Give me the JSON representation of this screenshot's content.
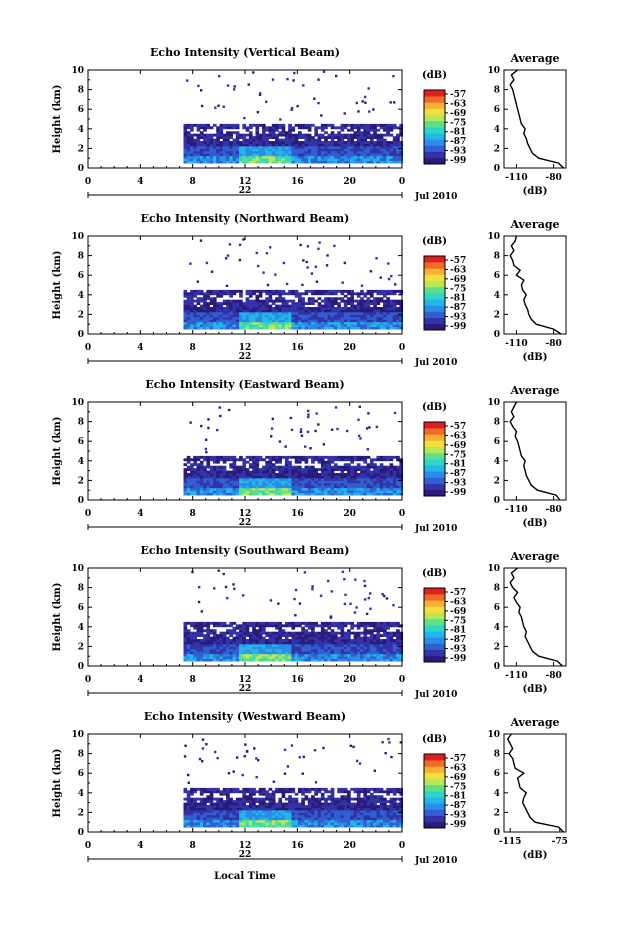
{
  "x_axis_label": "Local Time",
  "date_label": "Jul 2010",
  "day_label": "22",
  "height_label": "Height (km)",
  "cbar_unit": "(dB)",
  "profile_title": "Average",
  "profile_xlabel": "(dB)",
  "colorscale": [
    "#2a1b7a",
    "#3333a8",
    "#2f5fd0",
    "#2a8be8",
    "#24b6e8",
    "#2fd6c8",
    "#5ee08a",
    "#b8e85a",
    "#f0e040",
    "#f8b030",
    "#f06a28",
    "#e02020"
  ],
  "chart_data": [
    {
      "type": "heatmap",
      "title": "Echo Intensity (Vertical Beam)",
      "xlabel": "",
      "ylabel": "Height (km)",
      "xlim": [
        0,
        24
      ],
      "ylim": [
        0,
        10
      ],
      "x_ticks": [
        "0",
        "4",
        "8",
        "12",
        "16",
        "20",
        "0"
      ],
      "y_ticks": [
        "0",
        "2",
        "4",
        "6",
        "8",
        "10"
      ],
      "cbar_ticks": [
        "-57",
        "-63",
        "-69",
        "-75",
        "-81",
        "-87",
        "-93",
        "-99"
      ],
      "data_start_hour": 7.3,
      "layer_top_km": 4.5,
      "profile": {
        "x_ticks": [
          "-110",
          "-80"
        ],
        "xlim": [
          -120,
          -70
        ],
        "heights": [
          0,
          0.5,
          1,
          1.5,
          2,
          2.5,
          3,
          3.5,
          4,
          4.5,
          5,
          5.5,
          6,
          6.5,
          7,
          7.5,
          8,
          8.5,
          9,
          9.5,
          10
        ],
        "values": [
          -72,
          -76,
          -92,
          -97,
          -99,
          -101,
          -102,
          -104,
          -103,
          -106,
          -107,
          -108,
          -109,
          -110,
          -111,
          -112,
          -113,
          -115,
          -112,
          -114,
          -109
        ]
      }
    },
    {
      "type": "heatmap",
      "title": "Echo Intensity (Northward Beam)",
      "xlabel": "",
      "ylabel": "Height (km)",
      "xlim": [
        0,
        24
      ],
      "ylim": [
        0,
        10
      ],
      "x_ticks": [
        "0",
        "4",
        "8",
        "12",
        "16",
        "20",
        "0"
      ],
      "y_ticks": [
        "0",
        "2",
        "4",
        "6",
        "8",
        "10"
      ],
      "cbar_ticks": [
        "-57",
        "-63",
        "-69",
        "-75",
        "-81",
        "-87",
        "-93",
        "-99"
      ],
      "data_start_hour": 7.3,
      "layer_top_km": 4.5,
      "profile": {
        "x_ticks": [
          "-110",
          "-80"
        ],
        "xlim": [
          -120,
          -70
        ],
        "heights": [
          0,
          0.5,
          1,
          1.5,
          2,
          2.5,
          3,
          3.5,
          4,
          4.5,
          5,
          5.5,
          6,
          6.5,
          7,
          7.5,
          8,
          8.5,
          9,
          9.5,
          10
        ],
        "values": [
          -74,
          -80,
          -94,
          -98,
          -100,
          -101,
          -103,
          -104,
          -102,
          -105,
          -106,
          -104,
          -110,
          -107,
          -112,
          -113,
          -115,
          -112,
          -114,
          -111,
          -110
        ]
      }
    },
    {
      "type": "heatmap",
      "title": "Echo Intensity (Eastward Beam)",
      "xlabel": "",
      "ylabel": "Height (km)",
      "xlim": [
        0,
        24
      ],
      "ylim": [
        0,
        10
      ],
      "x_ticks": [
        "0",
        "4",
        "8",
        "12",
        "16",
        "20",
        "0"
      ],
      "y_ticks": [
        "0",
        "2",
        "4",
        "6",
        "8",
        "10"
      ],
      "cbar_ticks": [
        "-57",
        "-63",
        "-69",
        "-75",
        "-81",
        "-87",
        "-93",
        "-99"
      ],
      "data_start_hour": 7.3,
      "layer_top_km": 4.5,
      "profile": {
        "x_ticks": [
          "-110",
          "-80"
        ],
        "xlim": [
          -120,
          -70
        ],
        "heights": [
          0,
          0.5,
          1,
          1.5,
          2,
          2.5,
          3,
          3.5,
          4,
          4.5,
          5,
          5.5,
          6,
          6.5,
          7,
          7.5,
          8,
          8.5,
          9,
          9.5,
          10
        ],
        "values": [
          -75,
          -78,
          -93,
          -98,
          -100,
          -102,
          -103,
          -104,
          -103,
          -106,
          -107,
          -108,
          -109,
          -111,
          -110,
          -113,
          -115,
          -112,
          -114,
          -112,
          -110
        ]
      }
    },
    {
      "type": "heatmap",
      "title": "Echo Intensity (Southward Beam)",
      "xlabel": "",
      "ylabel": "Height (km)",
      "xlim": [
        0,
        24
      ],
      "ylim": [
        0,
        10
      ],
      "x_ticks": [
        "0",
        "4",
        "8",
        "12",
        "16",
        "20",
        "0"
      ],
      "y_ticks": [
        "0",
        "2",
        "4",
        "6",
        "8",
        "10"
      ],
      "cbar_ticks": [
        "-57",
        "-63",
        "-69",
        "-75",
        "-81",
        "-87",
        "-93",
        "-99"
      ],
      "data_start_hour": 7.3,
      "layer_top_km": 4.5,
      "profile": {
        "x_ticks": [
          "-110",
          "-80"
        ],
        "xlim": [
          -120,
          -70
        ],
        "heights": [
          0,
          0.5,
          1,
          1.5,
          2,
          2.5,
          3,
          3.5,
          4,
          4.5,
          5,
          5.5,
          6,
          6.5,
          7,
          7.5,
          8,
          8.5,
          9,
          9.5,
          10
        ],
        "values": [
          -73,
          -77,
          -92,
          -97,
          -99,
          -101,
          -103,
          -102,
          -104,
          -105,
          -106,
          -108,
          -107,
          -110,
          -112,
          -109,
          -113,
          -115,
          -112,
          -114,
          -109
        ]
      }
    },
    {
      "type": "heatmap",
      "title": "Echo Intensity (Westward Beam)",
      "xlabel": "",
      "ylabel": "Height (km)",
      "xlim": [
        0,
        24
      ],
      "ylim": [
        0,
        10
      ],
      "x_ticks": [
        "0",
        "4",
        "8",
        "12",
        "16",
        "20",
        "0"
      ],
      "y_ticks": [
        "0",
        "2",
        "4",
        "6",
        "8",
        "10"
      ],
      "cbar_ticks": [
        "-57",
        "-63",
        "-69",
        "-75",
        "-81",
        "-87",
        "-93",
        "-99"
      ],
      "data_start_hour": 7.3,
      "layer_top_km": 4.5,
      "profile": {
        "x_ticks": [
          "-115",
          "-75"
        ],
        "xlim": [
          -120,
          -70
        ],
        "heights": [
          0,
          0.5,
          1,
          1.5,
          2,
          2.5,
          3,
          3.5,
          4,
          4.5,
          5,
          5.5,
          6,
          6.5,
          7,
          7.5,
          8,
          8.5,
          9,
          9.5,
          10
        ],
        "values": [
          -72,
          -76,
          -95,
          -99,
          -101,
          -103,
          -105,
          -104,
          -102,
          -107,
          -108,
          -109,
          -104,
          -111,
          -112,
          -113,
          -116,
          -113,
          -115,
          -117,
          -114
        ]
      }
    }
  ]
}
